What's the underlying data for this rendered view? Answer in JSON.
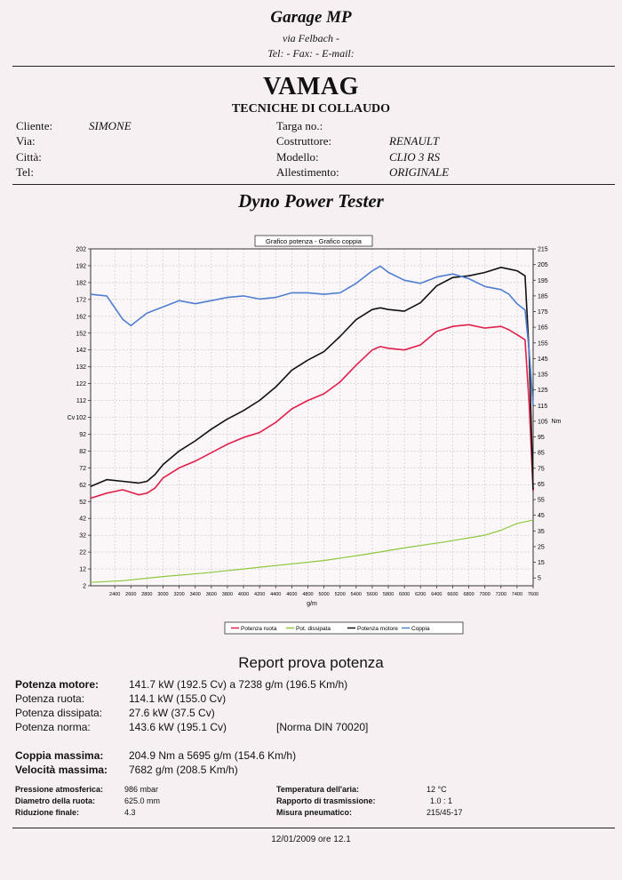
{
  "header": {
    "garage_name": "Garage MP",
    "address": "via Felbach  -",
    "contacts": "Tel:  - Fax:  - E-mail:",
    "company": "VAMAG",
    "subtitle": "TECNICHE DI COLLAUDO"
  },
  "customer": {
    "cliente_label": "Cliente:",
    "cliente_value": "SIMONE",
    "via_label": "Via:",
    "citta_label": "Città:",
    "tel_label": "Tel:"
  },
  "vehicle": {
    "targa_label": "Targa no.:",
    "costruttore_label": "Costruttore:",
    "costruttore_value": "RENAULT",
    "modello_label": "Modello:",
    "modello_value": "CLIO 3 RS",
    "allestimento_label": "Allestimento:",
    "allestimento_value": "ORIGINALE"
  },
  "section_title": "Dyno Power Tester",
  "chart_data": {
    "type": "line",
    "title": "Grafico potenza - Grafico coppia",
    "xlabel": "g/m",
    "ylabel_left": "Cv",
    "ylabel_right": "Nm",
    "x_ticks": [
      2400,
      2600,
      2800,
      3000,
      3200,
      3400,
      3600,
      3800,
      4000,
      4200,
      4400,
      4600,
      4800,
      5000,
      5200,
      5400,
      5600,
      5800,
      6000,
      6200,
      6400,
      6600,
      6800,
      7000,
      7200,
      7400,
      7600
    ],
    "xlim": [
      2100,
      7600
    ],
    "y_left_ticks": [
      2,
      12,
      22,
      32,
      42,
      52,
      62,
      72,
      82,
      92,
      102,
      112,
      122,
      132,
      142,
      152,
      162,
      172,
      182,
      192,
      202
    ],
    "y_left_lim": [
      2,
      202
    ],
    "y_right_ticks": [
      5,
      15,
      25,
      35,
      45,
      55,
      65,
      75,
      85,
      95,
      105,
      115,
      125,
      135,
      145,
      155,
      165,
      175,
      185,
      195,
      205,
      215
    ],
    "y_right_lim": [
      0,
      215
    ],
    "legend": [
      "Potenza ruota",
      "Pot. dissipata",
      "Potenza motore",
      "Coppia"
    ],
    "series": [
      {
        "name": "Potenza ruota",
        "axis": "left",
        "color": "#e0204a",
        "x": [
          2100,
          2300,
          2500,
          2700,
          2800,
          2900,
          3000,
          3200,
          3400,
          3600,
          3800,
          4000,
          4200,
          4400,
          4600,
          4800,
          5000,
          5200,
          5400,
          5600,
          5700,
          5800,
          6000,
          6200,
          6400,
          6600,
          6800,
          7000,
          7200,
          7300,
          7400,
          7500,
          7550,
          7600
        ],
        "y": [
          54,
          57,
          59,
          56,
          57,
          60,
          66,
          72,
          76,
          81,
          86,
          90,
          93,
          99,
          107,
          112,
          116,
          123,
          133,
          142,
          144,
          143,
          142,
          145,
          153,
          156,
          157,
          155,
          156,
          154,
          151,
          148,
          110,
          58
        ]
      },
      {
        "name": "Pot. dissipata",
        "axis": "left",
        "color": "#8cc83c",
        "x": [
          2100,
          2500,
          3000,
          3500,
          4000,
          4500,
          5000,
          5500,
          6000,
          6500,
          7000,
          7200,
          7400,
          7600
        ],
        "y": [
          4,
          5,
          7.5,
          9.5,
          12,
          14.5,
          17,
          20.5,
          24.5,
          28,
          32,
          35,
          39,
          41
        ]
      },
      {
        "name": "Potenza motore",
        "axis": "left",
        "color": "#111111",
        "x": [
          2100,
          2300,
          2500,
          2700,
          2800,
          2900,
          3000,
          3200,
          3400,
          3600,
          3800,
          4000,
          4200,
          4400,
          4600,
          4800,
          5000,
          5200,
          5400,
          5600,
          5700,
          5800,
          6000,
          6200,
          6400,
          6600,
          6800,
          7000,
          7200,
          7300,
          7400,
          7500,
          7550,
          7600
        ],
        "y": [
          61,
          65,
          64,
          63,
          64,
          68,
          74,
          82,
          88,
          95,
          101,
          106,
          112,
          120,
          130,
          136,
          141,
          150,
          160,
          166,
          167,
          166,
          165,
          170,
          180,
          185,
          186,
          188,
          191,
          190,
          189,
          186,
          140,
          59
        ]
      },
      {
        "name": "Coppia",
        "axis": "right",
        "color": "#4f7fd0",
        "x": [
          2100,
          2300,
          2500,
          2600,
          2700,
          2800,
          3000,
          3200,
          3400,
          3600,
          3800,
          4000,
          4200,
          4400,
          4600,
          4800,
          5000,
          5200,
          5400,
          5600,
          5700,
          5800,
          6000,
          6200,
          6400,
          6600,
          6800,
          7000,
          7200,
          7300,
          7400,
          7500,
          7550,
          7600
        ],
        "y": [
          186,
          185,
          170,
          166,
          170,
          174,
          178,
          182,
          180,
          182,
          184,
          185,
          183,
          184,
          187,
          187,
          186,
          187,
          193,
          201,
          204,
          200,
          195,
          193,
          197,
          199,
          196,
          191,
          189,
          186,
          180,
          176,
          150,
          115
        ]
      }
    ]
  },
  "report": {
    "title": "Report prova potenza",
    "potenza_motore_label": "Potenza motore:",
    "potenza_motore_value": "141.7 kW (192.5 Cv) a 7238 g/m (196.5 Km/h)",
    "potenza_ruota_label": "Potenza ruota:",
    "potenza_ruota_value": "114.1 kW (155.0 Cv)",
    "potenza_dissipata_label": "Potenza dissipata:",
    "potenza_dissipata_value": "27.6 kW (37.5 Cv)",
    "potenza_norma_label": "Potenza norma:",
    "potenza_norma_value": "143.6 kW (195.1 Cv)",
    "norma": "[Norma DIN 70020]",
    "coppia_massima_label": "Coppia massima:",
    "coppia_massima_value": "204.9 Nm a 5695 g/m (154.6 Km/h)",
    "velocita_massima_label": "Velocità massima:",
    "velocita_massima_value": "7682 g/m (208.5 Km/h)",
    "pressione_label": "Pressione atmosferica:",
    "pressione_value": "986 mbar",
    "diametro_label": "Diametro della ruota:",
    "diametro_value": "625.0 mm",
    "riduzione_label": "Riduzione finale:",
    "riduzione_value": "4.3",
    "temperatura_label": "Temperatura dell'aria:",
    "temperatura_value": "12 °C",
    "rapporto_label": "Rapporto di trasmissione:",
    "rapporto_value": "1.0 : 1",
    "pneumatico_label": "Misura pneumatico:",
    "pneumatico_value": "215/45-17",
    "date": "12/01/2009 ore 12.1"
  }
}
